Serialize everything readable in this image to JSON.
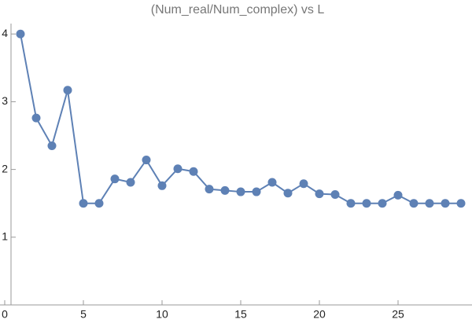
{
  "chart_data": {
    "type": "line",
    "title": "(Num_real/Num_complex) vs L",
    "x": [
      1,
      2,
      3,
      4,
      5,
      6,
      7,
      8,
      9,
      10,
      11,
      12,
      13,
      14,
      15,
      16,
      17,
      18,
      19,
      20,
      21,
      22,
      23,
      24,
      25,
      26,
      27,
      28,
      29
    ],
    "series": [
      {
        "color": "#5e81b5",
        "values": [
          4.0,
          2.76,
          2.35,
          3.17,
          1.5,
          1.5,
          1.86,
          1.81,
          2.14,
          1.76,
          2.01,
          1.97,
          1.71,
          1.69,
          1.67,
          1.67,
          1.81,
          1.65,
          1.79,
          1.64,
          1.63,
          1.5,
          1.5,
          1.5,
          1.62,
          1.5,
          1.5,
          1.5,
          1.5
        ]
      }
    ],
    "xlim": [
      0,
      29.7
    ],
    "ylim": [
      0,
      4.2
    ],
    "xticks": [
      0,
      5,
      10,
      15,
      20,
      25
    ],
    "yticks": [
      1,
      2,
      3,
      4
    ]
  }
}
